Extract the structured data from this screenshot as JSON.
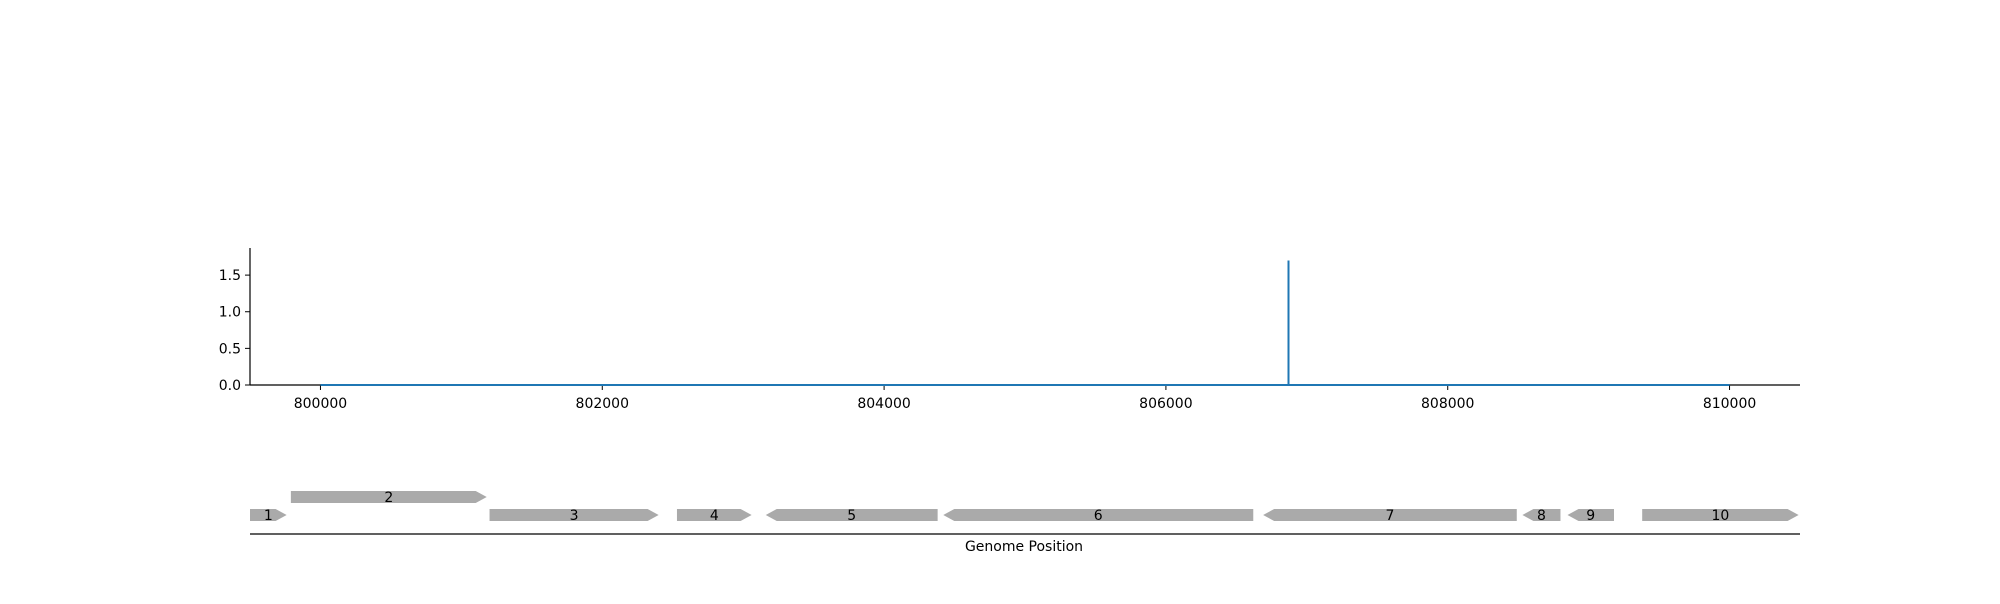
{
  "chart_data": [
    {
      "type": "line",
      "x": [
        800000,
        806870,
        806870,
        806870,
        810000
      ],
      "y": [
        0.0,
        0.0,
        1.7,
        0.0,
        0.0
      ],
      "xlim": [
        799500,
        810500
      ],
      "ylim": [
        0.0,
        1.87
      ],
      "xticks": [
        800000,
        802000,
        804000,
        806000,
        808000,
        810000
      ],
      "xtick_labels": [
        "800000",
        "802000",
        "804000",
        "806000",
        "808000",
        "810000"
      ],
      "yticks": [
        0.0,
        0.5,
        1.0,
        1.5
      ],
      "ytick_labels": [
        "0.0",
        "0.5",
        "1.0",
        "1.5"
      ],
      "series_color": "#1f77b4",
      "grid": false,
      "spines": "left-bottom"
    },
    {
      "type": "gene-track",
      "xlabel": "Genome Position",
      "xlim": [
        799500,
        810500
      ],
      "genes": [
        {
          "label": "1",
          "start": 799500,
          "end": 799760,
          "strand": "+",
          "row": 0
        },
        {
          "label": "2",
          "start": 799790,
          "end": 801180,
          "strand": "+",
          "row": 1
        },
        {
          "label": "3",
          "start": 801200,
          "end": 802400,
          "strand": "+",
          "row": 0
        },
        {
          "label": "4",
          "start": 802530,
          "end": 803060,
          "strand": "+",
          "row": 0
        },
        {
          "label": "5",
          "start": 803160,
          "end": 804380,
          "strand": "-",
          "row": 0
        },
        {
          "label": "6",
          "start": 804420,
          "end": 806620,
          "strand": "-",
          "row": 0
        },
        {
          "label": "7",
          "start": 806690,
          "end": 808490,
          "strand": "-",
          "row": 0
        },
        {
          "label": "8",
          "start": 808530,
          "end": 808800,
          "strand": "-",
          "row": 0
        },
        {
          "label": "9",
          "start": 808850,
          "end": 809180,
          "strand": "-",
          "row": 0
        },
        {
          "label": "10",
          "start": 809380,
          "end": 810490,
          "strand": "+",
          "row": 0
        }
      ],
      "gene_color": "#aaaaaa"
    }
  ]
}
